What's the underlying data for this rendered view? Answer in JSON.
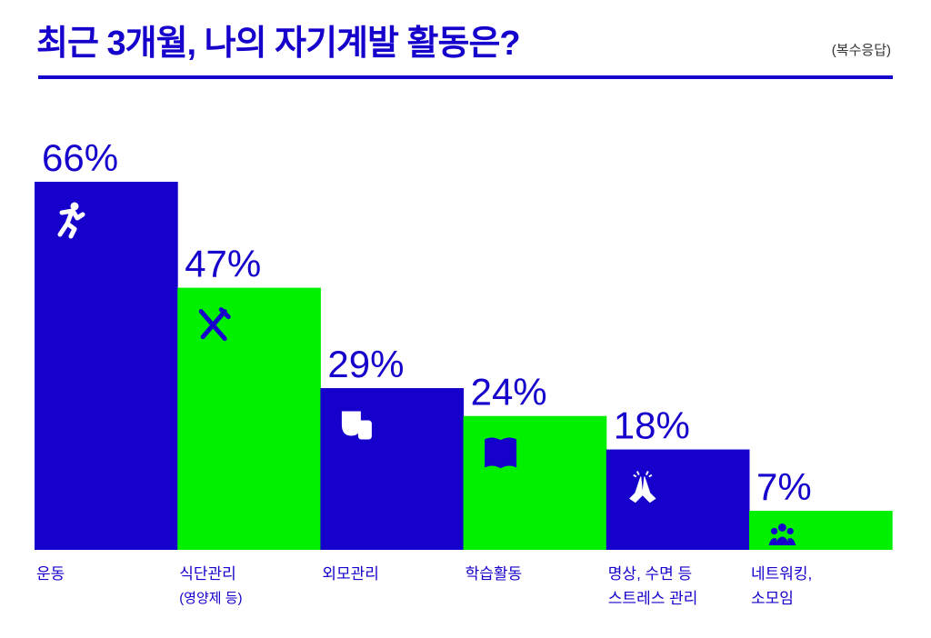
{
  "header": {
    "title": "최근 3개월, 나의 자기계발 활동은?",
    "note": "(복수응답)"
  },
  "colors": {
    "blue": "#1500cc",
    "green": "#00f000",
    "icon_on_blue": "#ffffff",
    "icon_on_green": "#1500cc"
  },
  "chart_data": {
    "type": "bar",
    "title": "최근 3개월, 나의 자기계발 활동은?",
    "subtitle": "(복수응답)",
    "categories": [
      "운동",
      "식단관리",
      "외모관리",
      "학습활동",
      "명상, 수면 등",
      "네트워킹,"
    ],
    "category_sublabels": [
      "",
      "(영양제 등)",
      "",
      "",
      "스트레스 관리",
      "소모임"
    ],
    "values": [
      66,
      47,
      29,
      24,
      18,
      7
    ],
    "value_labels": [
      "66%",
      "47%",
      "29%",
      "24%",
      "18%",
      "7%"
    ],
    "icons": [
      "running-icon",
      "utensils-icon",
      "masks-icon",
      "book-icon",
      "praying-hands-icon",
      "group-icon"
    ],
    "bar_colors": [
      "blue",
      "green",
      "blue",
      "green",
      "blue",
      "green"
    ],
    "unit": "%",
    "xlabel": "",
    "ylabel": "",
    "ylim": [
      0,
      66
    ],
    "grid": false,
    "legend": "none"
  }
}
